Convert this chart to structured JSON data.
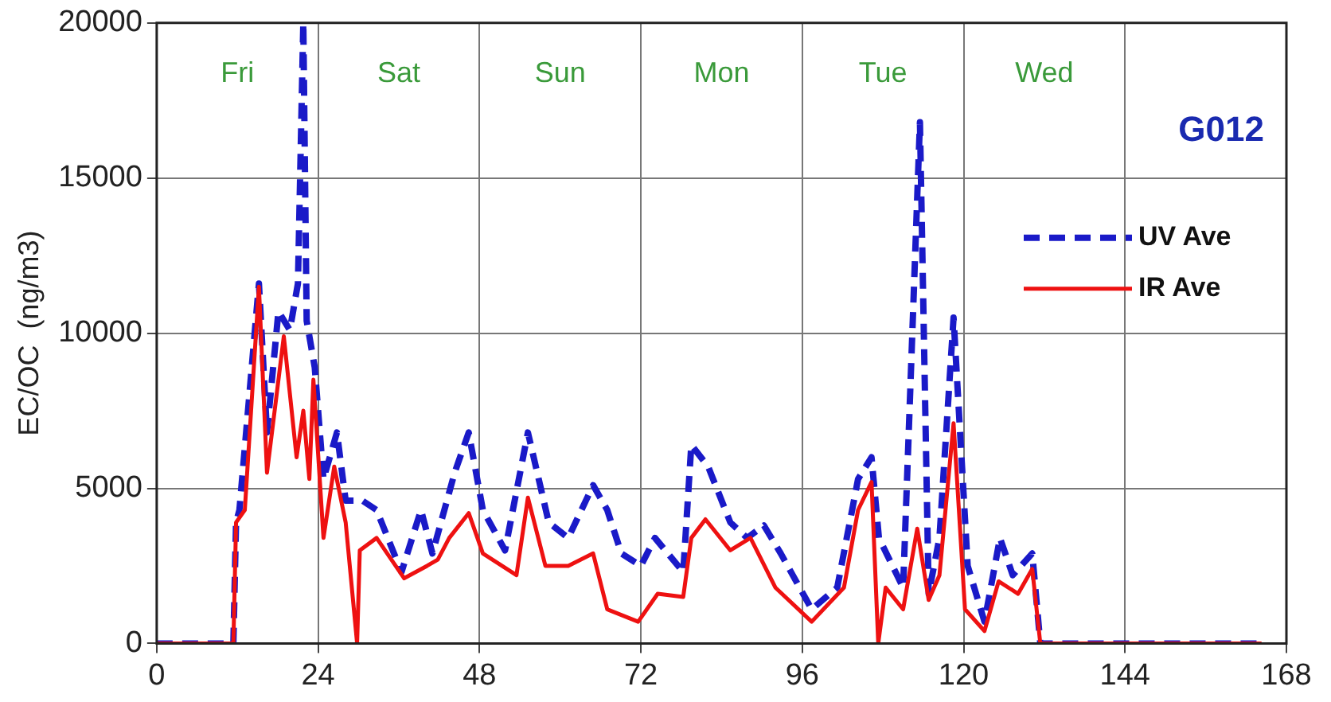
{
  "chart_data": {
    "type": "line",
    "ylabel": "EC/OC  (ng/m3)",
    "xlim": [
      0,
      168
    ],
    "xticks": [
      0,
      24,
      48,
      72,
      96,
      120,
      144,
      168
    ],
    "ylim": [
      0,
      20000
    ],
    "yticks": [
      0,
      5000,
      10000,
      15000,
      20000
    ],
    "grid": true,
    "legend": "right",
    "marker": "none",
    "annotations": [
      "Fri",
      "Sat",
      "Sun",
      "Mon",
      "Tue",
      "Wed",
      "G012"
    ],
    "series": [
      {
        "name": "UV Ave",
        "color": "#1a1ac8",
        "line_style": "dashed",
        "x": [
          0,
          11.4,
          11.8,
          12.3,
          15.2,
          16.4,
          18.1,
          19.8,
          21,
          21.8,
          22.3,
          23.5,
          24.8,
          26.8,
          28.1,
          30.6,
          32.7,
          36.4,
          39.3,
          41,
          44.3,
          46.4,
          48.5,
          51.8,
          55.2,
          58.3,
          61.2,
          64.9,
          67,
          69.1,
          72,
          74.1,
          78.3,
          79.5,
          82,
          85.3,
          87.8,
          90.3,
          92.8,
          97.4,
          101.2,
          104.3,
          106.3,
          107.4,
          111,
          113.5,
          114.8,
          116.4,
          118.5,
          120.6,
          123.1,
          125.4,
          127.3,
          130.2,
          131.4,
          164.3
        ],
        "values": [
          0,
          0,
          3900,
          4300,
          11600,
          6800,
          10700,
          10100,
          11600,
          20000,
          10400,
          8900,
          5300,
          6800,
          4600,
          4600,
          4300,
          2300,
          4300,
          2900,
          5500,
          6800,
          4300,
          3000,
          6800,
          3900,
          3400,
          5100,
          4300,
          2900,
          2500,
          3400,
          2300,
          6400,
          5700,
          3900,
          3400,
          3800,
          2900,
          1100,
          1800,
          5300,
          6000,
          3400,
          1800,
          16800,
          1600,
          3400,
          10500,
          2500,
          700,
          3400,
          2200,
          2900,
          0,
          0
        ]
      },
      {
        "name": "IR Ave",
        "color": "#ee1111",
        "line_style": "solid",
        "x": [
          0,
          11.4,
          11.8,
          13.1,
          15.2,
          16.4,
          18.9,
          20.8,
          21.8,
          22.7,
          23.3,
          24.8,
          26.4,
          28.1,
          29.8,
          30.2,
          32.7,
          36.8,
          40.2,
          41.8,
          43.5,
          46.4,
          48.5,
          53.5,
          55.2,
          57.8,
          61.2,
          64.9,
          67,
          71.6,
          74.5,
          78.3,
          79.5,
          81.6,
          85.3,
          88.3,
          92,
          97.4,
          102.2,
          104.3,
          106.3,
          107.3,
          108.4,
          111,
          113.1,
          114.8,
          116.4,
          118.5,
          120.2,
          123.1,
          125.2,
          128.1,
          130.2,
          131.4,
          164.3
        ],
        "values": [
          0,
          0,
          3900,
          4300,
          11500,
          5500,
          9900,
          6000,
          7500,
          5300,
          8500,
          3400,
          5700,
          3900,
          0,
          3000,
          3400,
          2100,
          2500,
          2700,
          3400,
          4200,
          2900,
          2200,
          4700,
          2500,
          2500,
          2900,
          1100,
          700,
          1600,
          1500,
          3400,
          4000,
          3000,
          3400,
          1800,
          700,
          1800,
          4300,
          5200,
          0,
          1800,
          1100,
          3700,
          1400,
          2200,
          7100,
          1100,
          400,
          2000,
          1600,
          2400,
          0,
          0
        ]
      }
    ]
  }
}
